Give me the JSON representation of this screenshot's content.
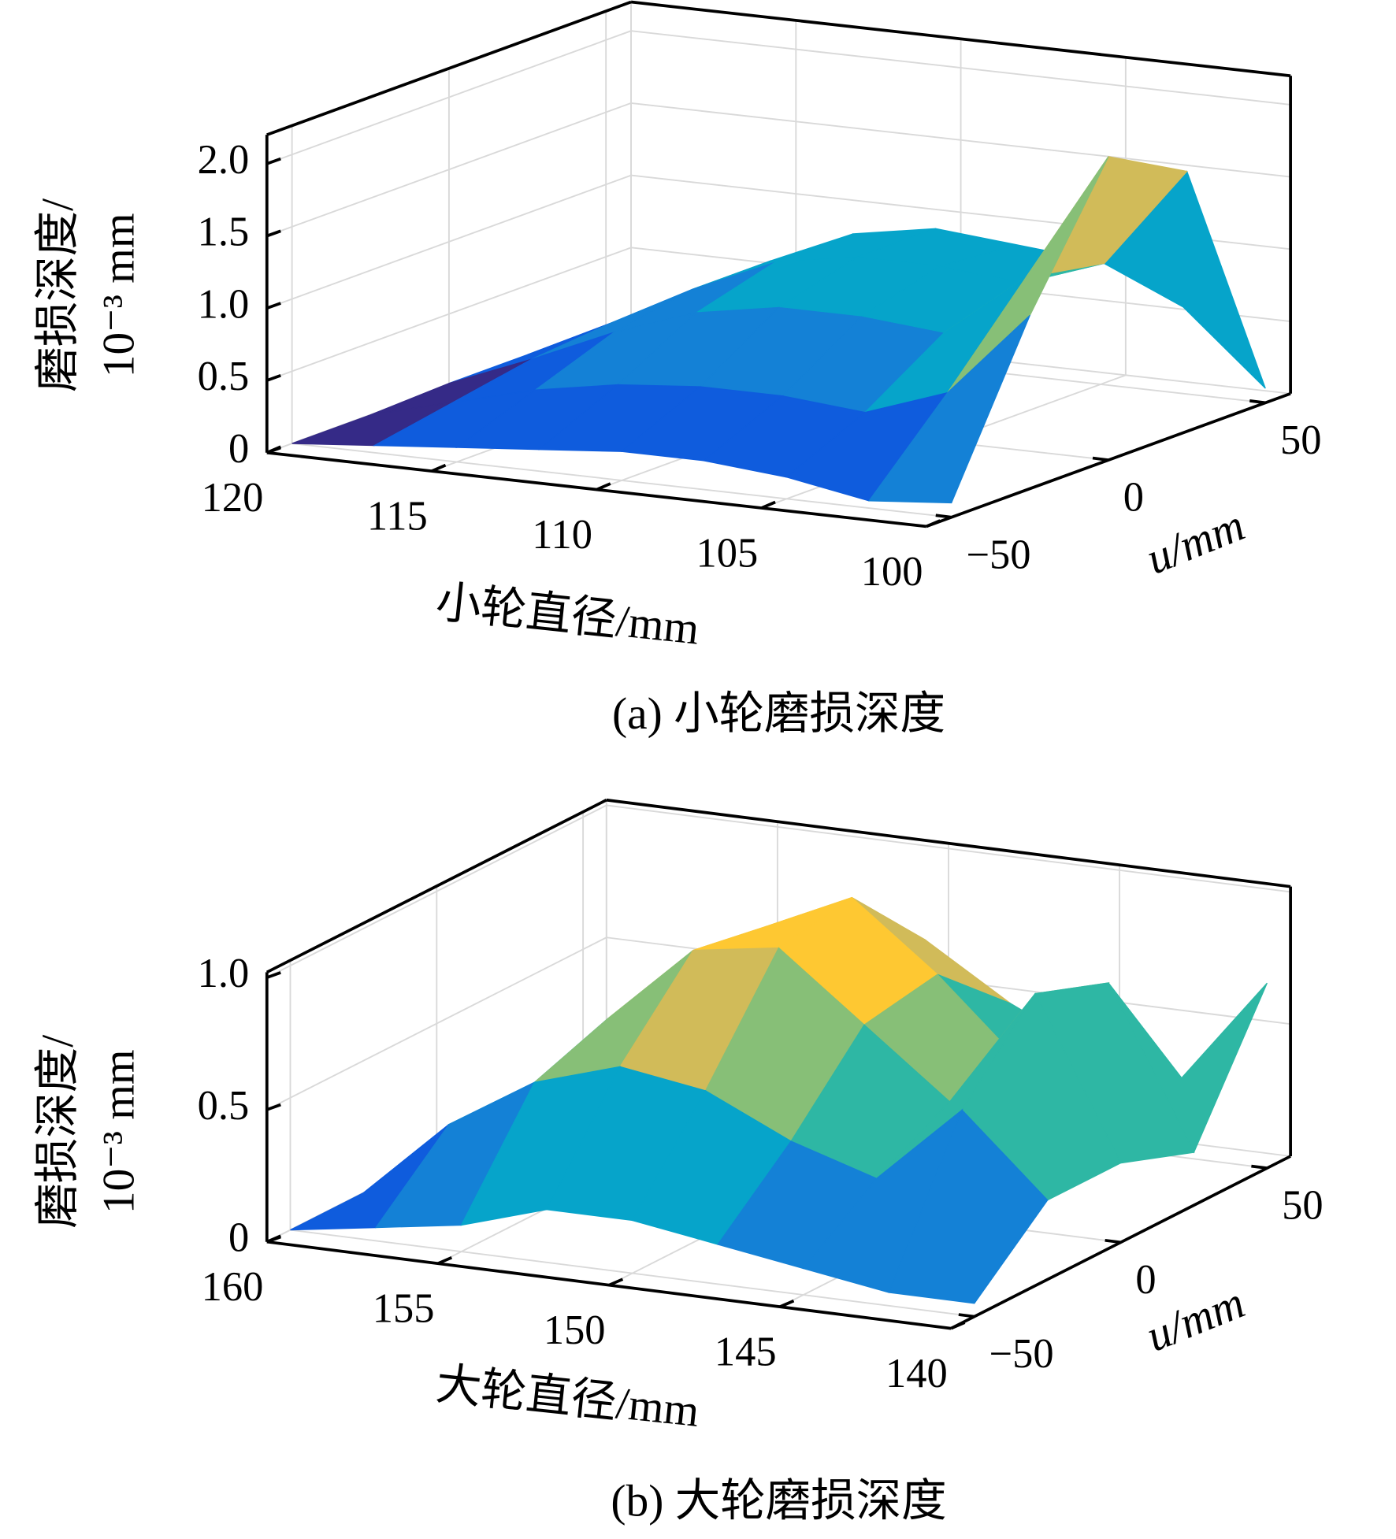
{
  "chart_data": [
    {
      "type": "surface",
      "caption": "(a) 小轮磨损深度",
      "x_label": "小轮直径/mm",
      "u_label": "u/mm",
      "z_label": [
        "磨损深度/",
        "10⁻³ mm"
      ],
      "x": [
        120,
        117.5,
        115,
        112.5,
        110,
        107.5,
        105,
        102.5,
        100
      ],
      "u": [
        -50,
        -25,
        0,
        25,
        50
      ],
      "z": [
        [
          0,
          0,
          0.02,
          0.02,
          0.02
        ],
        [
          0.05,
          0.15,
          0.25,
          0.3,
          0.3
        ],
        [
          0.1,
          0.3,
          0.5,
          0.6,
          0.6
        ],
        [
          0.15,
          0.4,
          0.7,
          0.85,
          0.85
        ],
        [
          0.2,
          0.45,
          0.8,
          0.95,
          0.95
        ],
        [
          0.2,
          0.45,
          0.8,
          0.95,
          0.9
        ],
        [
          0.15,
          0.4,
          0.75,
          0.9,
          0.85
        ],
        [
          0.05,
          0.6,
          1.2,
          1.1,
          0.6
        ],
        [
          0.1,
          1.2,
          2.1,
          1.8,
          0.1
        ]
      ],
      "xlim": [
        120,
        100
      ],
      "ulim": [
        -58,
        58
      ],
      "zlim": [
        0,
        2.2
      ],
      "xticks": [
        120,
        115,
        110,
        105,
        100
      ],
      "uticks": [
        {
          "value": -50,
          "label": "−50"
        },
        0,
        50
      ],
      "zticks": [
        0,
        0.5,
        {
          "value": 1,
          "label": "1.0"
        },
        1.5,
        {
          "value": 2,
          "label": "2.0"
        }
      ],
      "grid": true,
      "colormap": [
        "#352a87",
        "#0f5cdd",
        "#1481d6",
        "#06a4ca",
        "#2eb7a4",
        "#87bf77",
        "#d1bb59",
        "#fec832",
        "#f9fb0e"
      ]
    },
    {
      "type": "surface",
      "caption": "(b) 大轮磨损深度",
      "x_label": "大轮直径/mm",
      "u_label": "u/mm",
      "z_label": [
        "磨损深度/",
        "10⁻³ mm"
      ],
      "x": [
        160,
        157.5,
        155,
        152.5,
        150,
        147.5,
        145,
        142.5,
        140
      ],
      "u": [
        -50,
        -25,
        0,
        25,
        50
      ],
      "z": [
        [
          0,
          0,
          0,
          0,
          0
        ],
        [
          0.05,
          0.3,
          0.1,
          0.05,
          0.05
        ],
        [
          0.1,
          0.5,
          0.6,
          0.5,
          0.3
        ],
        [
          0.2,
          0.6,
          0.9,
          0.85,
          0.6
        ],
        [
          0.2,
          0.55,
          0.95,
          1.0,
          0.7
        ],
        [
          0.15,
          0.4,
          0.7,
          0.75,
          0.5
        ],
        [
          0.1,
          0.3,
          0.45,
          0.45,
          0.35
        ],
        [
          0.05,
          0.6,
          0.9,
          0.8,
          0.3
        ],
        [
          0.05,
          0.3,
          0.3,
          0.2,
          0.7
        ]
      ],
      "xlim": [
        160,
        140
      ],
      "ulim": [
        -58,
        58
      ],
      "zlim": [
        0,
        1.02
      ],
      "xticks": [
        160,
        155,
        150,
        145,
        140
      ],
      "uticks": [
        {
          "value": -50,
          "label": "−50"
        },
        0,
        50
      ],
      "zticks": [
        0,
        0.5,
        {
          "value": 1,
          "label": "1.0"
        }
      ],
      "grid": true,
      "colormap": [
        "#352a87",
        "#0f5cdd",
        "#1481d6",
        "#06a4ca",
        "#2eb7a4",
        "#87bf77",
        "#d1bb59",
        "#fec832",
        "#f9fb0e"
      ]
    }
  ]
}
